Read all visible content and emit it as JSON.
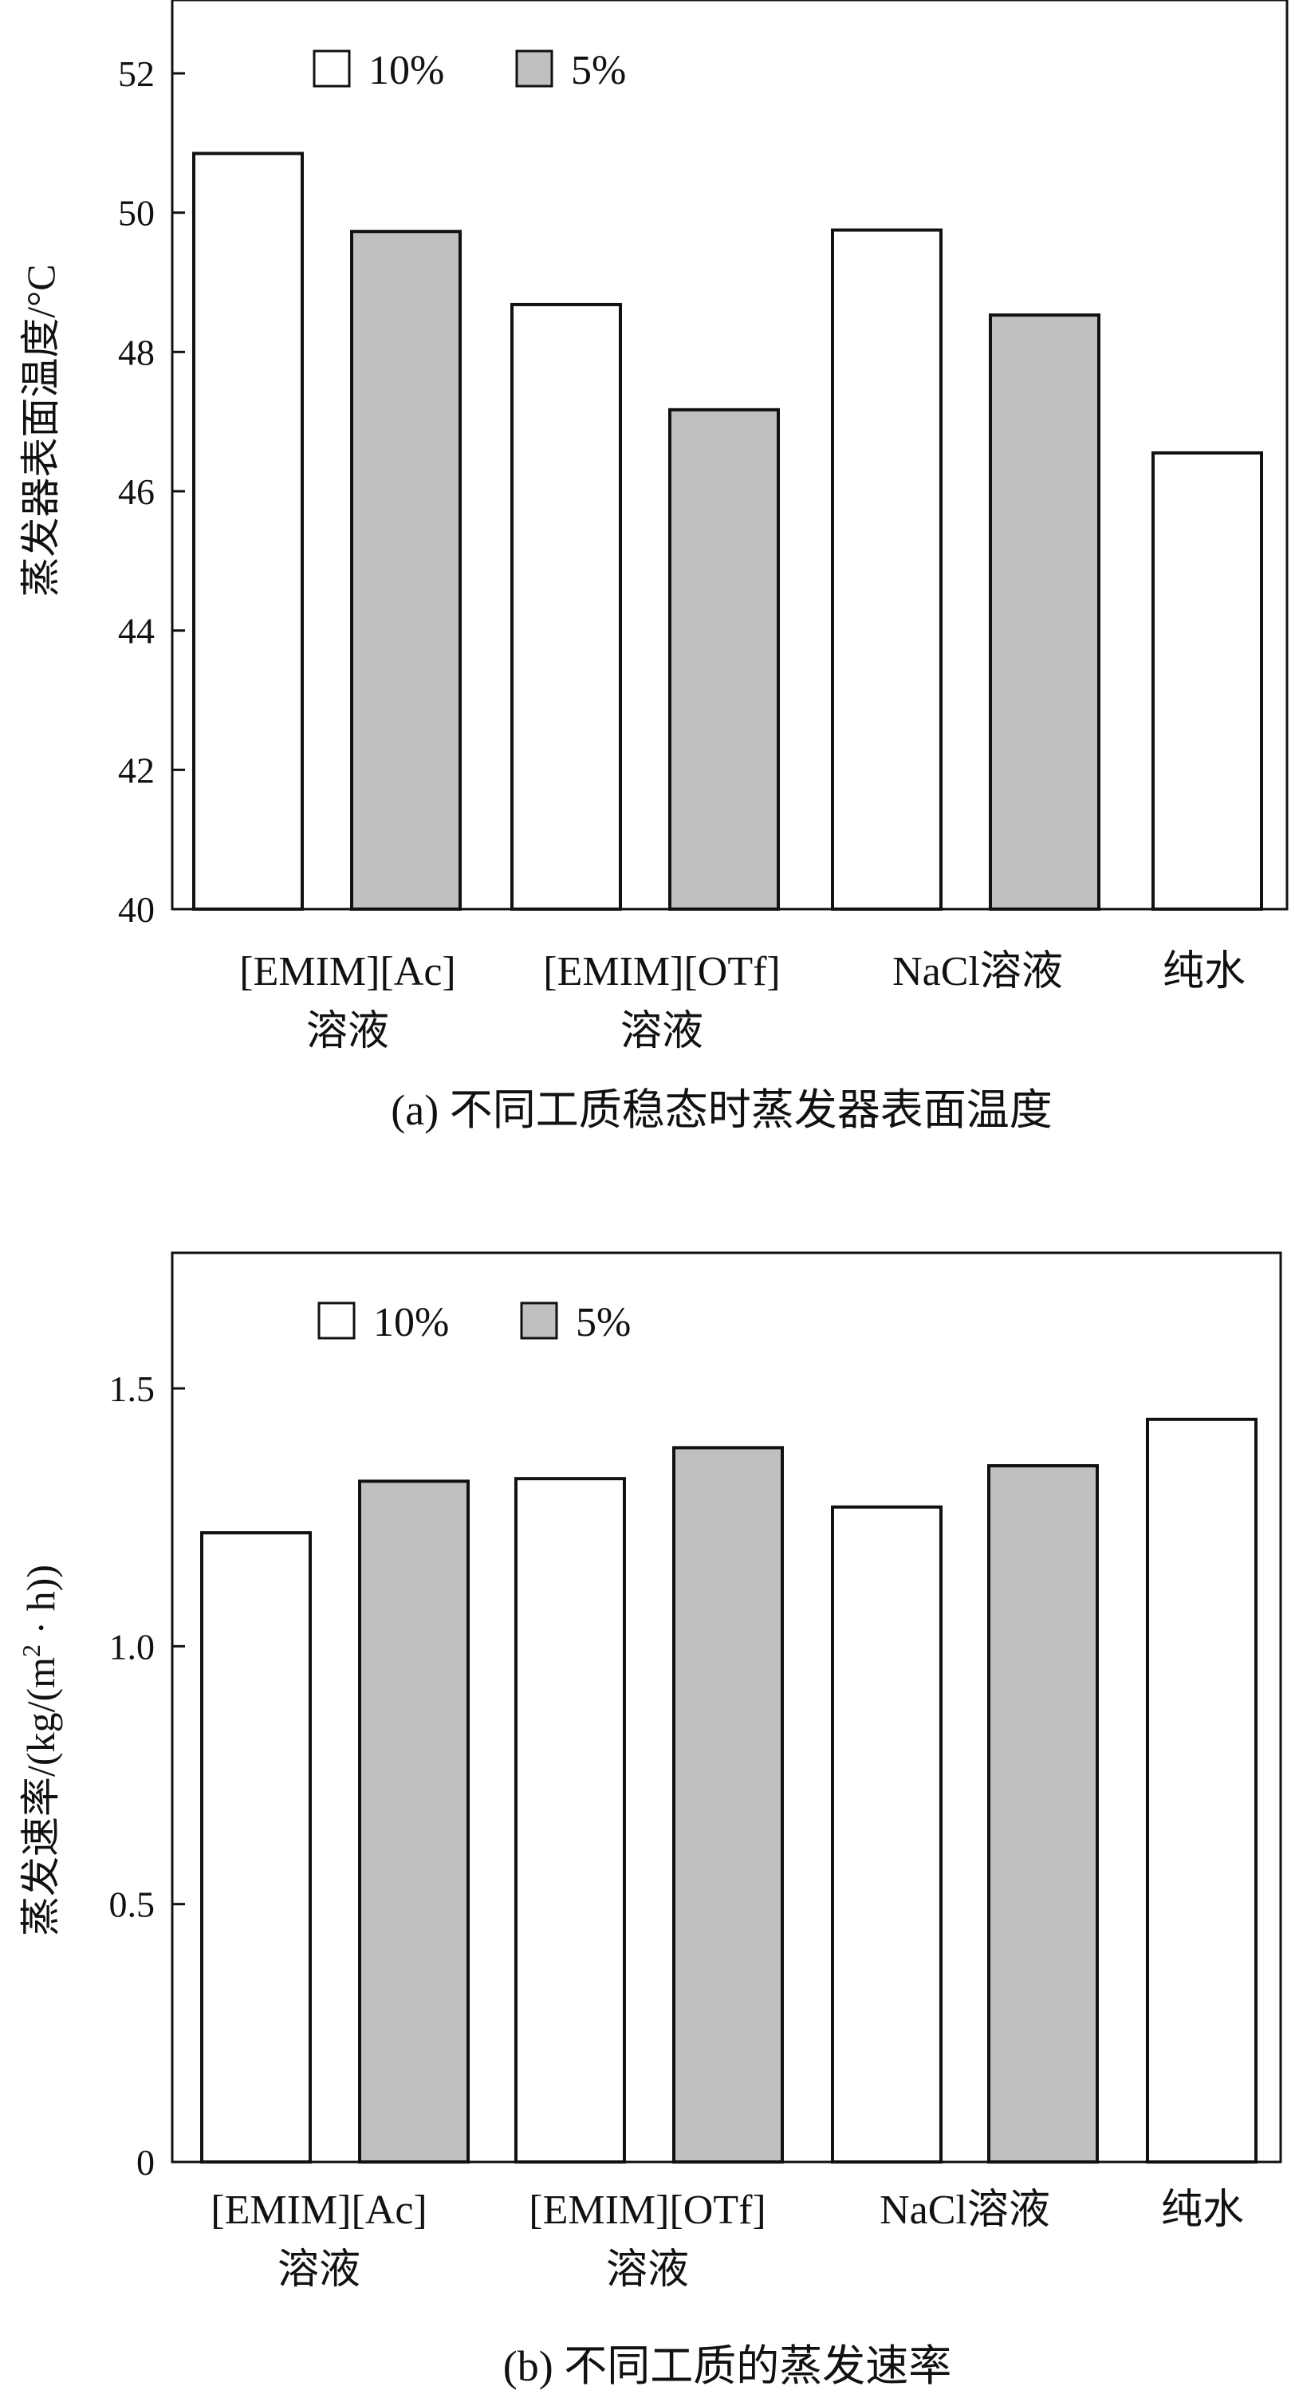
{
  "chart_data": [
    {
      "type": "bar",
      "caption": "(a) 不同工质稳态时蒸发器表面温度",
      "ylabel": "蒸发器表面温度/°C",
      "ylim": [
        40,
        53
      ],
      "yticks": [
        40,
        42,
        44,
        46,
        48,
        50,
        52
      ],
      "ytick_labels": [
        "40",
        "42",
        "44",
        "46",
        "48",
        "50",
        "52"
      ],
      "category_labels": [
        [
          "[EMIM][Ac]",
          "溶液"
        ],
        [
          "[EMIM][OTf]",
          "溶液"
        ],
        [
          "NaCl溶液"
        ],
        [
          "纯水"
        ]
      ],
      "legend": [
        "10%",
        "5%"
      ],
      "legend_position": "top-left",
      "series_colors": {
        "10%": "#ffffff",
        "5%": "#c0c0c0"
      },
      "bars": [
        {
          "category": 0,
          "series": "10%",
          "value": 50.85
        },
        {
          "category": 0,
          "series": "5%",
          "value": 49.73
        },
        {
          "category": 1,
          "series": "10%",
          "value": 48.68
        },
        {
          "category": 1,
          "series": "5%",
          "value": 47.17
        },
        {
          "category": 2,
          "series": "10%",
          "value": 49.75
        },
        {
          "category": 2,
          "series": "5%",
          "value": 48.53
        },
        {
          "category": 3,
          "series": "10%",
          "value": 46.55
        }
      ],
      "grid": false
    },
    {
      "type": "bar",
      "caption": "(b) 不同工质的蒸发速率",
      "ylabel_main": "蒸发速率/(kg/(m",
      "ylabel_sup": "2",
      "ylabel_tail": " · h))",
      "ylim": [
        0,
        1.75
      ],
      "yticks": [
        0,
        0.5,
        1.0,
        1.5
      ],
      "ytick_labels": [
        "0",
        "0.5",
        "1.0",
        "1.5"
      ],
      "category_labels": [
        [
          "[EMIM][Ac]",
          "溶液"
        ],
        [
          "[EMIM][OTf]",
          "溶液"
        ],
        [
          "NaCl溶液"
        ],
        [
          "纯水"
        ]
      ],
      "legend": [
        "10%",
        "5%"
      ],
      "legend_position": "top-left",
      "series_colors": {
        "10%": "#ffffff",
        "5%": "#c0c0c0"
      },
      "bars": [
        {
          "category": 0,
          "series": "10%",
          "value": 1.22
        },
        {
          "category": 0,
          "series": "5%",
          "value": 1.32
        },
        {
          "category": 1,
          "series": "10%",
          "value": 1.325
        },
        {
          "category": 1,
          "series": "5%",
          "value": 1.385
        },
        {
          "category": 2,
          "series": "10%",
          "value": 1.27
        },
        {
          "category": 2,
          "series": "5%",
          "value": 1.35
        },
        {
          "category": 3,
          "series": "10%",
          "value": 1.44
        }
      ],
      "grid": false
    }
  ]
}
